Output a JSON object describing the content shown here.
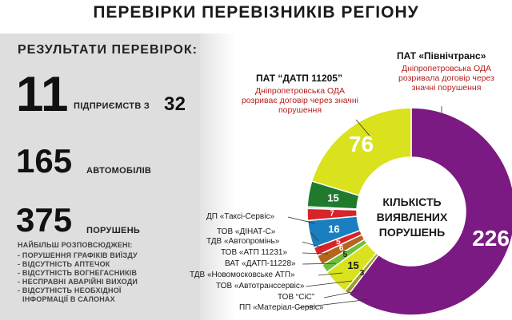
{
  "title": "ПЕРЕВІРКИ ПЕРЕВІЗНИКІВ РЕГІОНУ",
  "results": {
    "heading": "РЕЗУЛЬТАТИ ПЕРЕВІРОК:",
    "enterprises_count": "11",
    "enterprises_label": "ПІДПРИЄМСТВ З",
    "enterprises_total": "32",
    "cars_count": "165",
    "cars_label": "АВТОМОБІЛІВ",
    "violations_count": "375",
    "violations_label": "ПОРУШЕНЬ",
    "common_heading": "НАЙБІЛЬШ РОЗПОВСЮДЖЕНІ:",
    "common_violations": [
      "- ПОРУШЕННЯ ГРАФІКІВ ВИЇЗДУ",
      "- ВІДСУТНІСТЬ АПТЕЧОК",
      "- ВІДСУТНІСТЬ ВОГНЕГАСНИКІВ",
      "- НЕСПРАВНІ АВАРІЙНІ ВИХОДИ",
      "- ВІДСУТНІСТЬ НЕОБХІДНОЇ",
      "  ІНФОРМАЦІЇ В САЛОНАХ"
    ]
  },
  "callouts": {
    "datp_title": "ПАТ “ДАТП 11205”",
    "datp_note": "Дніпропетровська ОДА розриває договір через значні порушення",
    "pivnich_title": "ПАТ «Північтранс»",
    "pivnich_note": "Дніпропетровська ОДА розривала договір через значні порушення"
  },
  "center_label": [
    "КІЛЬКІСТЬ",
    "ВИЯВЛЕНИХ",
    "ПОРУШЕНЬ"
  ],
  "colors": {
    "purple": "#7b1a82",
    "yellow": "#d9e21c",
    "green": "#1f7a2e",
    "red": "#d6242a",
    "blue": "#1a7fc1",
    "brown": "#b5651d",
    "lightgreen": "#6fbf3a",
    "olive": "#9aa02a",
    "lightblue": "#58c0ea"
  },
  "chart_data": {
    "type": "pie",
    "title": "КІЛЬКІСТЬ ВИЯВЛЕНИХ ПОРУШЕНЬ",
    "slices": [
      {
        "name": "ПАТ «Північтранс»",
        "value": 226,
        "label": "226",
        "color": "#7b1a82"
      },
      {
        "name": "ПП «Матеріал-Сервіс»",
        "value": 3,
        "label": "3",
        "color": "#9aa02a"
      },
      {
        "name": "ТОВ “СіС”",
        "value": 15,
        "label": "15",
        "color": "#d9e21c"
      },
      {
        "name": "ТОВ «Автотранссервіс»",
        "value": 5,
        "label": "5",
        "color": "#6fbf3a"
      },
      {
        "name": "ТДВ «Новомосковське АТП»",
        "value": 6,
        "label": "6",
        "color": "#b5651d"
      },
      {
        "name": "ВАТ «ДАТП-11228»",
        "value": 5,
        "label": "5",
        "color": "#d6242a"
      },
      {
        "name": "ТОВ «АТП 11231»",
        "value": 16,
        "label": "16",
        "color": "#1a7fc1"
      },
      {
        "name": "ТДВ «Автопромінь»",
        "value": 7,
        "label": "7",
        "color": "#d6242a"
      },
      {
        "name": "ТОВ «ДІНАТ-С»",
        "value": 1,
        "label": "",
        "color": "#58c0ea"
      },
      {
        "name": "ДП «Таксі-Сервіс»",
        "value": 15,
        "label": "15",
        "color": "#1f7a2e"
      },
      {
        "name": "ПАТ “ДАТП 11205”",
        "value": 76,
        "label": "76",
        "color": "#d9e21c"
      }
    ]
  }
}
